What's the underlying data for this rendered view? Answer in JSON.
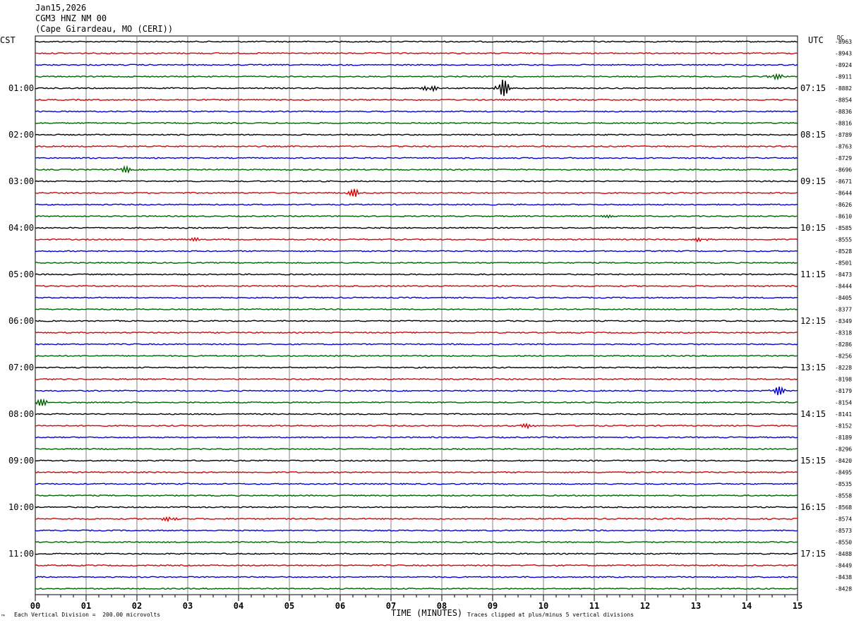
{
  "header": {
    "date": "Jan15,2026",
    "station": "CGM3 HNZ NM 00",
    "location": "(Cape Girardeau, MO (CERI))"
  },
  "left_timezone": "CST",
  "right_timezone": "UTC",
  "dc_label": "DC",
  "footer": {
    "scale_note": "Each Vertical Division =  200.00 microvolts",
    "clip_note": "Traces clipped at plus/minus 5 vertical divisions",
    "corner_mark": "™"
  },
  "colors": {
    "trace_cycle": [
      "#000000",
      "#e00000",
      "#0000e0",
      "#006400"
    ],
    "grid": "#808080"
  },
  "chart_data": {
    "type": "line",
    "title": "",
    "xlabel": "TIME (MINUTES)",
    "ylabel": "",
    "x_ticks": [
      "00",
      "01",
      "02",
      "03",
      "04",
      "05",
      "06",
      "07",
      "08",
      "09",
      "10",
      "11",
      "12",
      "13",
      "14",
      "15"
    ],
    "xlim": [
      0,
      15
    ],
    "grid": true,
    "left_time_labels": [
      "01:00",
      "02:00",
      "03:00",
      "04:00",
      "05:00",
      "06:00",
      "07:00",
      "08:00",
      "09:00",
      "10:00",
      "11:00"
    ],
    "right_time_labels": [
      "07:15",
      "08:15",
      "09:15",
      "10:15",
      "11:15",
      "12:15",
      "13:15",
      "14:15",
      "15:15",
      "16:15",
      "17:15"
    ],
    "dc_values": [
      "-8963",
      "-8943",
      "-8924",
      "-8911",
      "-8882",
      "-8854",
      "-8836",
      "-8816",
      "-8789",
      "-8763",
      "-8729",
      "-8696",
      "-8671",
      "-8644",
      "-8626",
      "-8610",
      "-8585",
      "-8555",
      "-8528",
      "-8501",
      "-8473",
      "-8444",
      "-8405",
      "-8377",
      "-8349",
      "-8318",
      "-8286",
      "-8256",
      "-8228",
      "-8198",
      "-8179",
      "-8154",
      "-8141",
      "-8152",
      "-8189",
      "-8296",
      "-8420",
      "-8495",
      "-8535",
      "-8558",
      "-8568",
      "-8574",
      "-8573",
      "-8550",
      "-8488",
      "-8449",
      "-8438",
      "-8428"
    ],
    "events": [
      {
        "trace": 3,
        "minute": 14.55,
        "amplitude": 6
      },
      {
        "trace": 4,
        "minute": 7.75,
        "amplitude": 7
      },
      {
        "trace": 4,
        "minute": 9.18,
        "amplitude": 16
      },
      {
        "trace": 11,
        "minute": 1.75,
        "amplitude": 5
      },
      {
        "trace": 13,
        "minute": 6.3,
        "amplitude": 7
      },
      {
        "trace": 15,
        "minute": 11.2,
        "amplitude": 3
      },
      {
        "trace": 17,
        "minute": 3.1,
        "amplitude": 3
      },
      {
        "trace": 17,
        "minute": 13.1,
        "amplitude": 4
      },
      {
        "trace": 30,
        "minute": 14.6,
        "amplitude": 7
      },
      {
        "trace": 31,
        "minute": 0.1,
        "amplitude": 6
      },
      {
        "trace": 33,
        "minute": 9.7,
        "amplitude": 4
      },
      {
        "trace": 41,
        "minute": 2.65,
        "amplitude": 5
      }
    ]
  }
}
